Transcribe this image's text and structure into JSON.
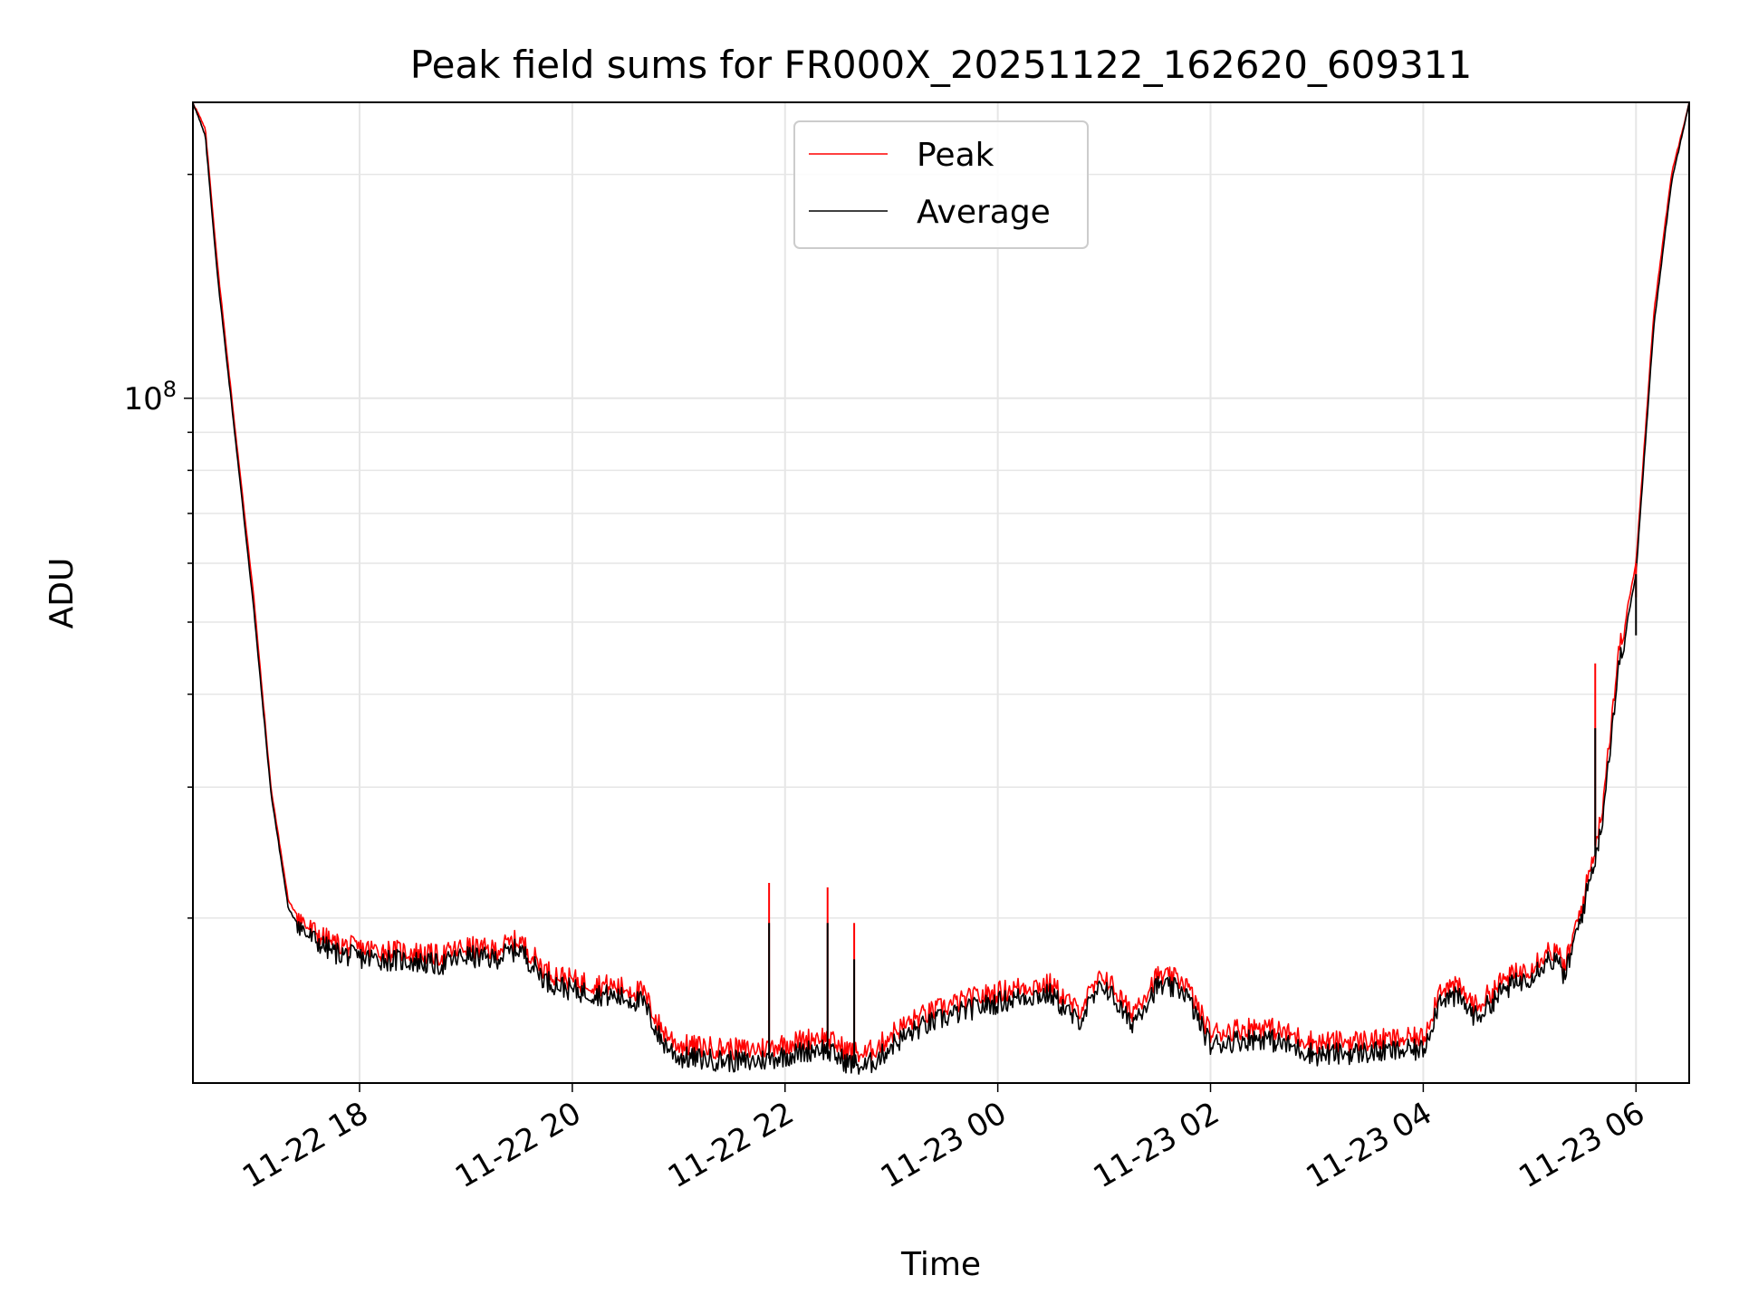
{
  "chart_data": {
    "type": "line",
    "title": "Peak field sums for FR000X_20251122_162620_609311",
    "xlabel": "Time",
    "ylabel": "ADU",
    "y_scale": "log",
    "ylim": [
      12000000,
      250000000
    ],
    "xlim": [
      "2025-11-22 16:26",
      "2025-11-23 06:30"
    ],
    "grid": true,
    "legend": "top-center",
    "x_ticks": [
      {
        "value": "2025-11-22 18:00",
        "label": "11-22 18"
      },
      {
        "value": "2025-11-22 20:00",
        "label": "11-22 20"
      },
      {
        "value": "2025-11-22 22:00",
        "label": "11-22 22"
      },
      {
        "value": "2025-11-23 00:00",
        "label": "11-23 00"
      },
      {
        "value": "2025-11-23 02:00",
        "label": "11-23 02"
      },
      {
        "value": "2025-11-23 04:00",
        "label": "11-23 04"
      },
      {
        "value": "2025-11-23 06:00",
        "label": "11-23 06"
      }
    ],
    "y_ticks": [
      {
        "value": 100000000,
        "base": "10",
        "exp": "8"
      }
    ],
    "series": [
      {
        "name": "Peak",
        "color": "#ff0000",
        "x": [
          "2025-11-22 16:26",
          "2025-11-22 16:33",
          "2025-11-22 16:40",
          "2025-11-22 16:50",
          "2025-11-22 17:00",
          "2025-11-22 17:10",
          "2025-11-22 17:20",
          "2025-11-22 17:30",
          "2025-11-22 17:45",
          "2025-11-22 18:00",
          "2025-11-22 18:30",
          "2025-11-22 18:45",
          "2025-11-22 19:00",
          "2025-11-22 19:15",
          "2025-11-22 19:30",
          "2025-11-22 19:45",
          "2025-11-22 20:00",
          "2025-11-22 20:15",
          "2025-11-22 20:30",
          "2025-11-22 20:40",
          "2025-11-22 20:50",
          "2025-11-22 21:00",
          "2025-11-22 21:20",
          "2025-11-22 21:40",
          "2025-11-22 21:48",
          "2025-11-22 21:55",
          "2025-11-22 22:10",
          "2025-11-22 22:20",
          "2025-11-22 22:35",
          "2025-11-22 22:45",
          "2025-11-22 22:55",
          "2025-11-22 23:00",
          "2025-11-22 23:15",
          "2025-11-22 23:30",
          "2025-11-22 23:45",
          "2025-11-23 00:00",
          "2025-11-23 00:15",
          "2025-11-23 00:30",
          "2025-11-23 00:45",
          "2025-11-23 01:00",
          "2025-11-23 01:15",
          "2025-11-23 01:30",
          "2025-11-23 01:45",
          "2025-11-23 02:00",
          "2025-11-23 02:15",
          "2025-11-23 02:30",
          "2025-11-23 03:00",
          "2025-11-23 03:30",
          "2025-11-23 04:00",
          "2025-11-23 04:10",
          "2025-11-23 04:20",
          "2025-11-23 04:30",
          "2025-11-23 04:45",
          "2025-11-23 05:00",
          "2025-11-23 05:10",
          "2025-11-23 05:15",
          "2025-11-23 05:20",
          "2025-11-23 05:30",
          "2025-11-23 05:40",
          "2025-11-23 05:50",
          "2025-11-23 06:00",
          "2025-11-23 06:10",
          "2025-11-23 06:20",
          "2025-11-23 06:30"
        ],
        "values": [
          250000000,
          230000000,
          150000000,
          90000000,
          55000000,
          30000000,
          21000000,
          19500000,
          18500000,
          18200000,
          18000000,
          17800000,
          18300000,
          18100000,
          18700000,
          17000000,
          16500000,
          16300000,
          16100000,
          15900000,
          14200000,
          13500000,
          13400000,
          13300000,
          13400000,
          13500000,
          13700000,
          13900000,
          13300000,
          13100000,
          13600000,
          14000000,
          14700000,
          15200000,
          15600000,
          15900000,
          16200000,
          16300000,
          15000000,
          16800000,
          14900000,
          16700000,
          16500000,
          14000000,
          14200000,
          14300000,
          13600000,
          13700000,
          13800000,
          16200000,
          16100000,
          15200000,
          16500000,
          17200000,
          18100000,
          18000000,
          17200000,
          21000000,
          27000000,
          45000000,
          60000000,
          130000000,
          200000000,
          250000000
        ]
      },
      {
        "name": "Average",
        "color": "#000000",
        "x": [
          "2025-11-22 16:26",
          "2025-11-22 16:33",
          "2025-11-22 16:40",
          "2025-11-22 16:50",
          "2025-11-22 17:00",
          "2025-11-22 17:10",
          "2025-11-22 17:20",
          "2025-11-22 17:30",
          "2025-11-22 17:45",
          "2025-11-22 18:00",
          "2025-11-22 18:30",
          "2025-11-22 18:45",
          "2025-11-22 19:00",
          "2025-11-22 19:15",
          "2025-11-22 19:30",
          "2025-11-22 19:45",
          "2025-11-22 20:00",
          "2025-11-22 20:15",
          "2025-11-22 20:30",
          "2025-11-22 20:40",
          "2025-11-22 20:50",
          "2025-11-22 21:00",
          "2025-11-22 21:20",
          "2025-11-22 21:40",
          "2025-11-22 21:48",
          "2025-11-22 21:55",
          "2025-11-22 22:10",
          "2025-11-22 22:20",
          "2025-11-22 22:35",
          "2025-11-22 22:45",
          "2025-11-22 22:55",
          "2025-11-22 23:00",
          "2025-11-22 23:15",
          "2025-11-22 23:30",
          "2025-11-22 23:45",
          "2025-11-23 00:00",
          "2025-11-23 00:15",
          "2025-11-23 00:30",
          "2025-11-23 00:45",
          "2025-11-23 01:00",
          "2025-11-23 01:15",
          "2025-11-23 01:30",
          "2025-11-23 01:45",
          "2025-11-23 02:00",
          "2025-11-23 02:15",
          "2025-11-23 02:30",
          "2025-11-23 03:00",
          "2025-11-23 03:30",
          "2025-11-23 04:00",
          "2025-11-23 04:10",
          "2025-11-23 04:20",
          "2025-11-23 04:30",
          "2025-11-23 04:45",
          "2025-11-23 05:00",
          "2025-11-23 05:10",
          "2025-11-23 05:15",
          "2025-11-23 05:20",
          "2025-11-23 05:30",
          "2025-11-23 05:40",
          "2025-11-23 05:50",
          "2025-11-23 06:00",
          "2025-11-23 06:10",
          "2025-11-23 06:20",
          "2025-11-23 06:30"
        ],
        "values": [
          250000000,
          225000000,
          145000000,
          88000000,
          53000000,
          29500000,
          20500000,
          19000000,
          18000000,
          17700000,
          17500000,
          17300000,
          17800000,
          17600000,
          18200000,
          16500000,
          16000000,
          15800000,
          15600000,
          15400000,
          13700000,
          13000000,
          12900000,
          12800000,
          12900000,
          13000000,
          13200000,
          13400000,
          12800000,
          12600000,
          13100000,
          13500000,
          14200000,
          14700000,
          15100000,
          15400000,
          15700000,
          15800000,
          14500000,
          16300000,
          14400000,
          16200000,
          16000000,
          13500000,
          13700000,
          13800000,
          13100000,
          13200000,
          13300000,
          15700000,
          15600000,
          14700000,
          16000000,
          16700000,
          17600000,
          17500000,
          16700000,
          20500000,
          26000000,
          43000000,
          58000000,
          125000000,
          195000000,
          250000000
        ]
      }
    ],
    "spikes": [
      {
        "x": "2025-11-22 21:51",
        "peak": 22300000,
        "average": 19700000
      },
      {
        "x": "2025-11-22 22:24",
        "peak": 22000000,
        "average": 19700000
      },
      {
        "x": "2025-11-22 22:39",
        "peak": 19700000,
        "average": 17600000
      },
      {
        "x": "2025-11-23 05:37",
        "peak": 44000000,
        "average": 36000000
      },
      {
        "x": "2025-11-23 06:00",
        "peak": 54000000,
        "average": 48000000
      }
    ]
  }
}
